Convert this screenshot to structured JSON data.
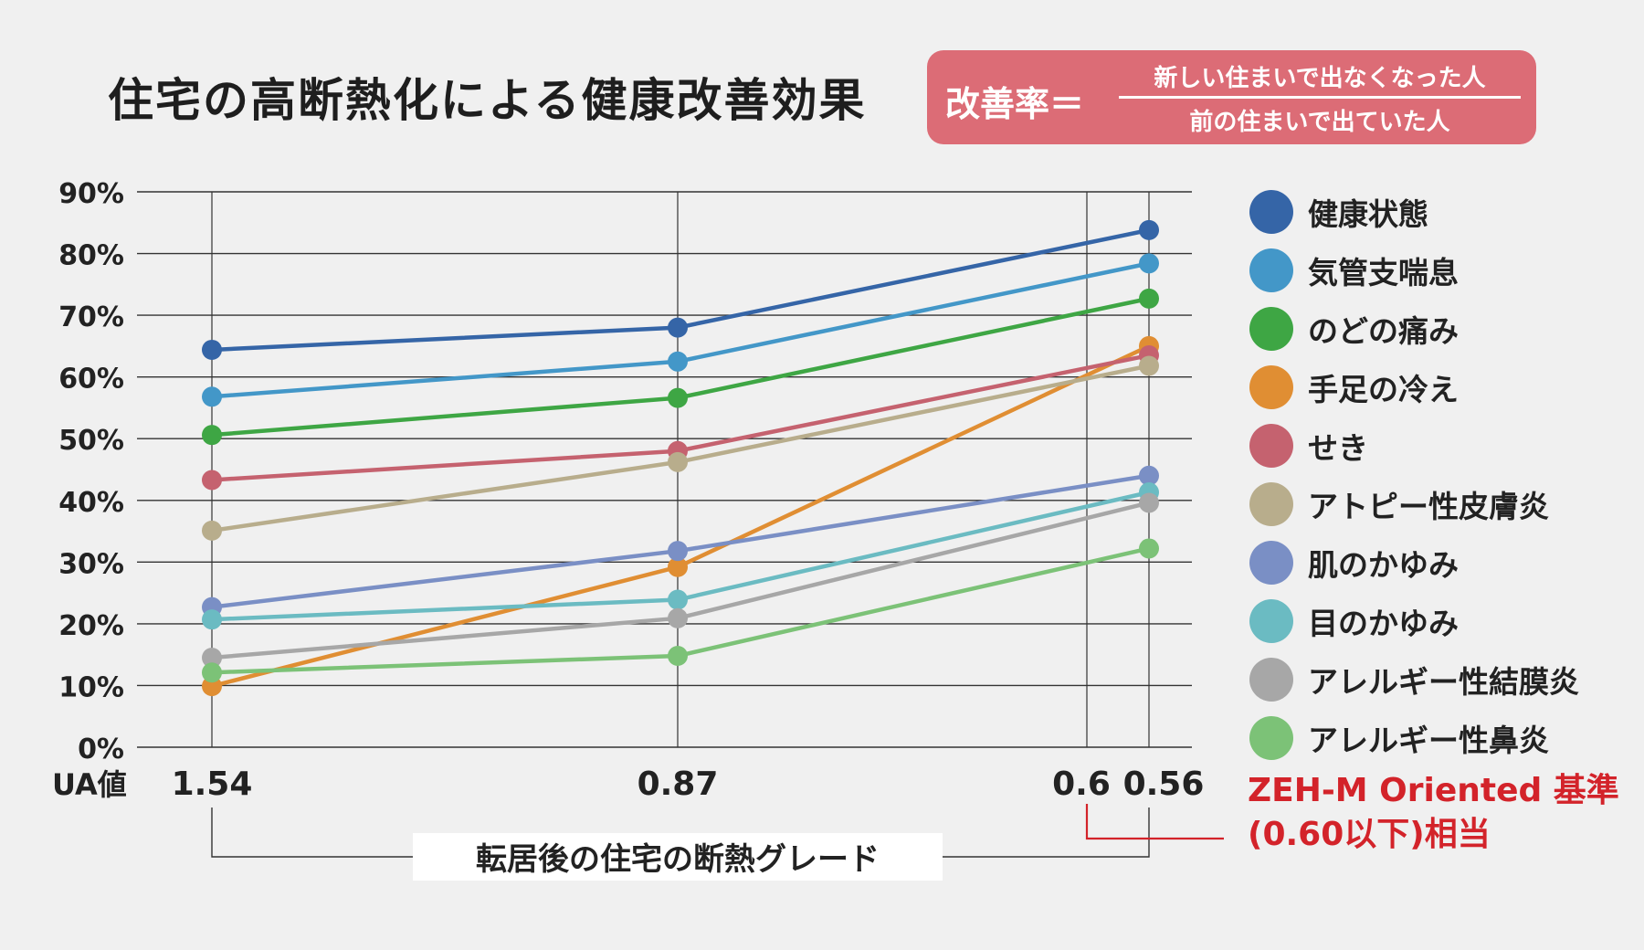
{
  "title": "住宅の高断熱化による健康改善効果",
  "formula": {
    "label": "改善率＝",
    "numerator": "新しい住まいで出なくなった人",
    "denominator": "前の住まいで出ていた人"
  },
  "colors": {
    "formula_bg": "#dc6c76",
    "zeh_note": "#d3232a",
    "grid": "#333333",
    "background": "#f0f0f0"
  },
  "chart_data": {
    "type": "line",
    "x": [
      1.54,
      0.87,
      0.56
    ],
    "x_tick_labels": [
      "1.54",
      "0.87",
      "0.6",
      "0.56"
    ],
    "x_reference_tick": 0.6,
    "x_prefix_label": "UA値",
    "xlabel": "転居後の住宅の断熱グレード",
    "ylabel": "",
    "ylim": [
      0,
      90
    ],
    "y_ticks": [
      0,
      10,
      20,
      30,
      40,
      50,
      60,
      70,
      80,
      90
    ],
    "y_tick_labels": [
      "0%",
      "10%",
      "20%",
      "30%",
      "40%",
      "50%",
      "60%",
      "70%",
      "80%",
      "90%"
    ],
    "grid": true,
    "legend_position": "right",
    "series": [
      {
        "name": "健康状態",
        "color": "#3565a7",
        "values": [
          64.4,
          68.0,
          83.8
        ]
      },
      {
        "name": "気管支喘息",
        "color": "#4397c8",
        "values": [
          56.8,
          62.5,
          78.4
        ]
      },
      {
        "name": "のどの痛み",
        "color": "#3ea644",
        "values": [
          50.6,
          56.6,
          72.7
        ]
      },
      {
        "name": "手足の冷え",
        "color": "#e08e33",
        "values": [
          9.9,
          29.2,
          65.0
        ]
      },
      {
        "name": "せき",
        "color": "#c5626f",
        "values": [
          43.3,
          48.0,
          63.5
        ]
      },
      {
        "name": "アトピー性皮膚炎",
        "color": "#b8ad8c",
        "values": [
          35.1,
          46.2,
          61.8
        ]
      },
      {
        "name": "肌のかゆみ",
        "color": "#7a8fc5",
        "values": [
          22.7,
          31.8,
          44.0
        ]
      },
      {
        "name": "目のかゆみ",
        "color": "#6bbbc2",
        "values": [
          20.7,
          23.9,
          41.3
        ]
      },
      {
        "name": "アレルギー性結膜炎",
        "color": "#a7a7a7",
        "values": [
          14.5,
          20.9,
          39.6
        ]
      },
      {
        "name": "アレルギー性鼻炎",
        "color": "#7cc277",
        "values": [
          12.1,
          14.8,
          32.2
        ]
      }
    ],
    "annotation": "ZEH-M Oriented 基準\n(0.60以下)相当"
  },
  "zeh_note": {
    "line1": "ZEH-M Oriented 基準",
    "line2": "(0.60以下)相当"
  }
}
